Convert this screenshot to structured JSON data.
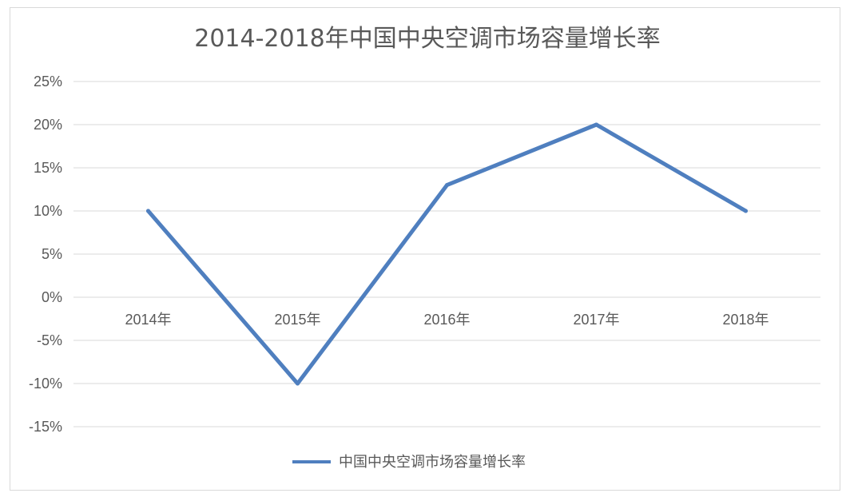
{
  "chart_data": {
    "type": "line",
    "title": "2014-2018年中国中央空调市场容量增长率",
    "categories": [
      "2014年",
      "2015年",
      "2016年",
      "2017年",
      "2018年"
    ],
    "series": [
      {
        "name": "中国中央空调市场容量增长率",
        "values": [
          10,
          -10,
          13,
          20,
          10
        ],
        "color": "#4f7fbf"
      }
    ],
    "yticks": [
      "25%",
      "20%",
      "15%",
      "10%",
      "5%",
      "0%",
      "-5%",
      "-10%",
      "-15%"
    ],
    "ylim": [
      -15,
      25
    ],
    "grid": true,
    "legend": "bottom"
  }
}
